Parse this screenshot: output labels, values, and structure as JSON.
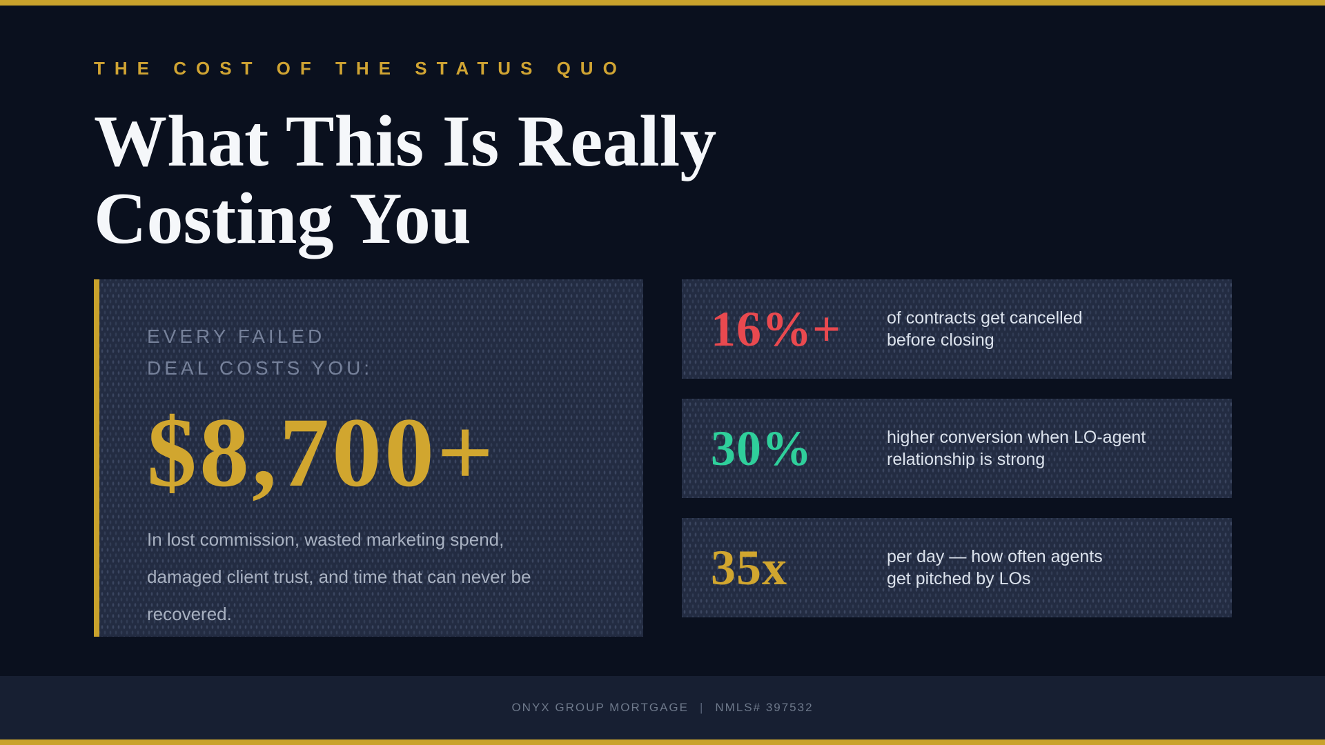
{
  "colors": {
    "accent_gold": "#C9A22C",
    "amount_gold": "#D1A62F",
    "stat_red": "#E9494F",
    "stat_green": "#2FCF9B",
    "stat_gold": "#D1A62F",
    "background": "#0A101E",
    "card_background": "#232C42",
    "footer_background": "#171F32"
  },
  "header": {
    "eyebrow": "THE COST OF THE STATUS QUO",
    "title_line1": "What This Is Really",
    "title_line2": "Costing You"
  },
  "cost_card": {
    "label_line1": "EVERY FAILED",
    "label_line2": "DEAL COSTS YOU:",
    "amount": "$8,700+",
    "description_line1": "In lost commission, wasted marketing spend,",
    "description_line2": "damaged client trust, and time that can never be",
    "description_line3": "recovered."
  },
  "stats": [
    {
      "value": "16%+",
      "color": "#E9494F",
      "line1": "of contracts get cancelled",
      "line2": "before closing"
    },
    {
      "value": "30%",
      "color": "#2FCF9B",
      "line1": "higher conversion when LO-agent",
      "line2": "relationship is strong"
    },
    {
      "value": "35x",
      "color": "#D1A62F",
      "line1": "per day — how often agents",
      "line2": "get pitched by LOs"
    }
  ],
  "footer": {
    "company": "ONYX GROUP MORTGAGE",
    "separator": "|",
    "nmls": "NMLS# 397532"
  }
}
